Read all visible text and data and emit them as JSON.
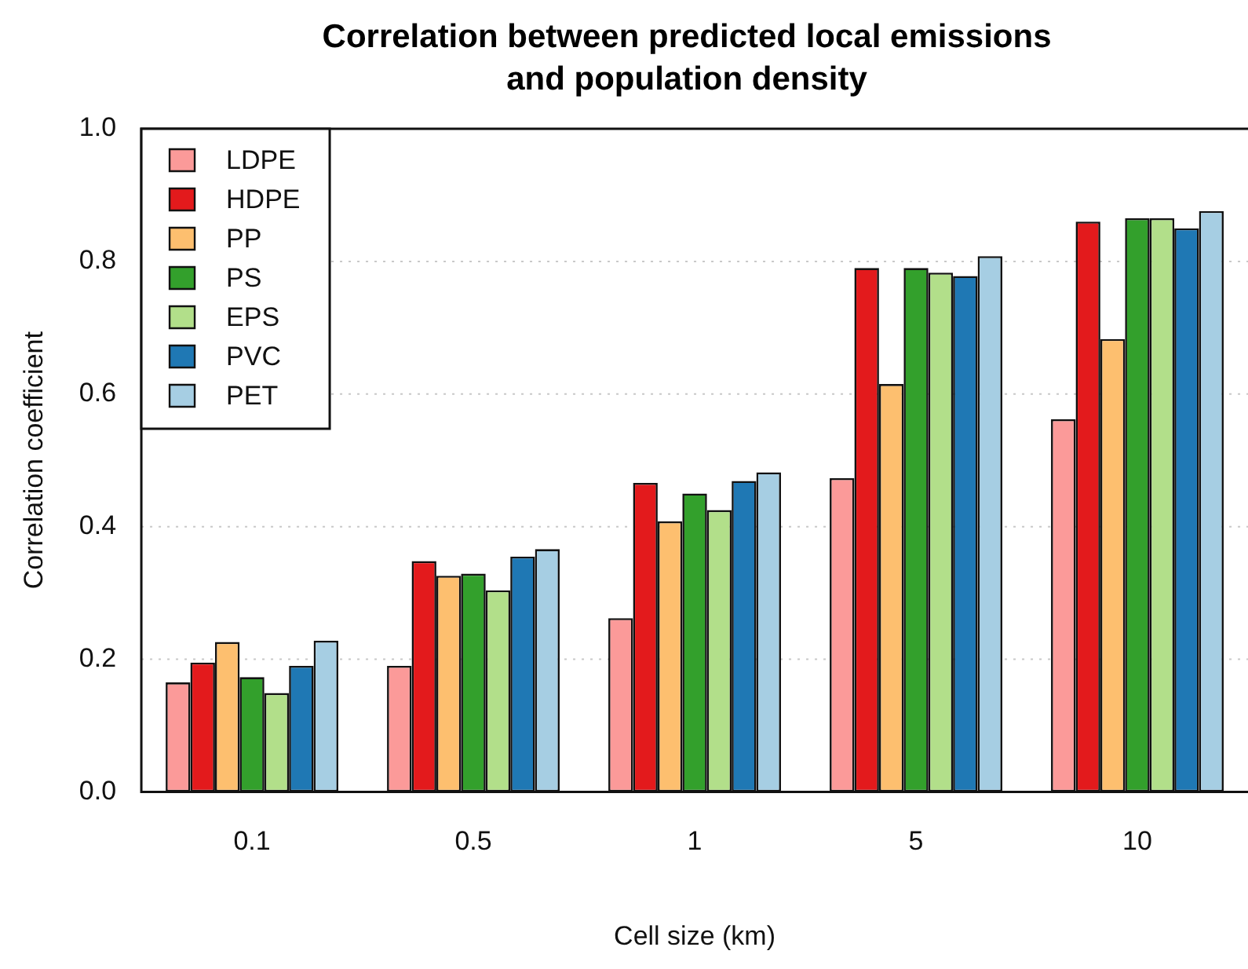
{
  "chart_data": {
    "type": "bar",
    "title": "Correlation between predicted local emissions and population density",
    "xlabel": "Cell size (km)",
    "ylabel": "Correlation coefficient",
    "categories": [
      "0.1",
      "0.5",
      "1",
      "5",
      "10"
    ],
    "series": [
      {
        "name": "LDPE",
        "color": "#fb9a99",
        "values": [
          0.165,
          0.19,
          0.262,
          0.473,
          0.562
        ]
      },
      {
        "name": "HDPE",
        "color": "#e31a1c",
        "values": [
          0.195,
          0.348,
          0.466,
          0.79,
          0.86
        ]
      },
      {
        "name": "PP",
        "color": "#fdbf6f",
        "values": [
          0.226,
          0.326,
          0.408,
          0.615,
          0.683
        ]
      },
      {
        "name": "PS",
        "color": "#33a02c",
        "values": [
          0.173,
          0.329,
          0.45,
          0.79,
          0.865
        ]
      },
      {
        "name": "EPS",
        "color": "#b2df8a",
        "values": [
          0.149,
          0.304,
          0.425,
          0.783,
          0.865
        ]
      },
      {
        "name": "PVC",
        "color": "#1f78b4",
        "values": [
          0.19,
          0.355,
          0.469,
          0.778,
          0.85
        ]
      },
      {
        "name": "PET",
        "color": "#a6cee3",
        "values": [
          0.228,
          0.366,
          0.482,
          0.808,
          0.876
        ]
      }
    ],
    "ylim": [
      0,
      1
    ],
    "yticks": [
      {
        "value": 0,
        "label": "0.0"
      },
      {
        "value": 0.2,
        "label": "0.2"
      },
      {
        "value": 0.4,
        "label": "0.4"
      },
      {
        "value": 0.6,
        "label": "0.6"
      },
      {
        "value": 0.8,
        "label": "0.8"
      },
      {
        "value": 1,
        "label": "1.0"
      }
    ],
    "grid": "y",
    "legend": "top left"
  }
}
